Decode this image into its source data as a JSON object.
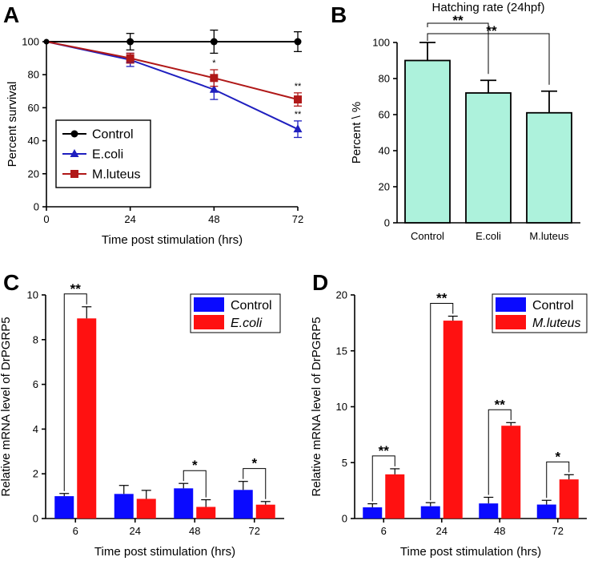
{
  "chart_data": [
    {
      "panel": "A",
      "type": "line",
      "xlabel": "Time post stimulation (hrs)",
      "ylabel": "Percent survival",
      "xlim": [
        0,
        72
      ],
      "ylim": [
        0,
        100
      ],
      "xticks": [
        0,
        24,
        48,
        72
      ],
      "yticks": [
        0,
        20,
        40,
        60,
        80,
        100
      ],
      "legend": "bottom-left",
      "series": [
        {
          "name": "Control",
          "marker": "circle",
          "color": "#000000",
          "x": [
            0,
            24,
            48,
            72
          ],
          "y": [
            100,
            100,
            100,
            100
          ],
          "err": [
            0,
            5,
            7,
            6
          ],
          "stars": [
            "",
            "",
            "",
            ""
          ]
        },
        {
          "name": "E.coli",
          "marker": "triangle",
          "color": "#1f1fbf",
          "x": [
            0,
            24,
            48,
            72
          ],
          "y": [
            100,
            89,
            71,
            47
          ],
          "err": [
            0,
            4,
            6,
            5
          ],
          "stars": [
            "",
            "",
            "",
            "**"
          ]
        },
        {
          "name": "M.luteus",
          "marker": "square",
          "color": "#b01818",
          "x": [
            0,
            24,
            48,
            72
          ],
          "y": [
            100,
            90,
            78,
            65
          ],
          "err": [
            0,
            3,
            5,
            4
          ],
          "stars": [
            "",
            "",
            "*",
            "**"
          ]
        }
      ]
    },
    {
      "panel": "B",
      "type": "bar",
      "title": "Hatching rate (24hpf)",
      "ylabel": "Percent \\ %",
      "categories": [
        "Control",
        "E.coli",
        "M.luteus"
      ],
      "values": [
        90,
        72,
        61
      ],
      "err": [
        10,
        7,
        12
      ],
      "ylim": [
        0,
        100
      ],
      "yticks": [
        0,
        20,
        40,
        60,
        80,
        100
      ],
      "bar_color": "#adf2dc",
      "comparisons": [
        {
          "from": 0,
          "to": 1,
          "label": "**"
        },
        {
          "from": 0,
          "to": 2,
          "label": "**"
        }
      ]
    },
    {
      "panel": "C",
      "type": "bar",
      "xlabel": "Time post stimulation (hrs)",
      "ylabel": "Relative mRNA level of DrPGRP5",
      "categories": [
        "6",
        "24",
        "48",
        "72"
      ],
      "ylim": [
        0,
        10
      ],
      "yticks": [
        0,
        2,
        4,
        6,
        8,
        10
      ],
      "legend": "top-right",
      "series": [
        {
          "name": "Control",
          "italic": false,
          "color": "#0a0aff",
          "values": [
            1.0,
            1.1,
            1.35,
            1.28
          ],
          "err": [
            0.12,
            0.38,
            0.22,
            0.38
          ]
        },
        {
          "name": "E.coli",
          "italic": true,
          "color": "#ff1111",
          "values": [
            8.95,
            0.88,
            0.52,
            0.62
          ],
          "err": [
            0.52,
            0.38,
            0.32,
            0.14
          ]
        }
      ],
      "significance": [
        "**",
        "",
        "*",
        "*"
      ]
    },
    {
      "panel": "D",
      "type": "bar",
      "xlabel": "Time post stimulation (hrs)",
      "ylabel": "Relative mRNA level of DrPGRP5",
      "categories": [
        "6",
        "24",
        "48",
        "72"
      ],
      "ylim": [
        0,
        20
      ],
      "yticks": [
        0,
        5,
        10,
        15,
        20
      ],
      "legend": "top-right",
      "series": [
        {
          "name": "Control",
          "italic": false,
          "color": "#0a0aff",
          "values": [
            1.0,
            1.1,
            1.35,
            1.25
          ],
          "err": [
            0.32,
            0.32,
            0.55,
            0.38
          ]
        },
        {
          "name": "M.luteus",
          "italic": true,
          "color": "#ff1111",
          "values": [
            3.95,
            17.7,
            8.3,
            3.5
          ],
          "err": [
            0.5,
            0.4,
            0.28,
            0.42
          ]
        }
      ],
      "significance": [
        "**",
        "**",
        "**",
        "*"
      ]
    }
  ]
}
